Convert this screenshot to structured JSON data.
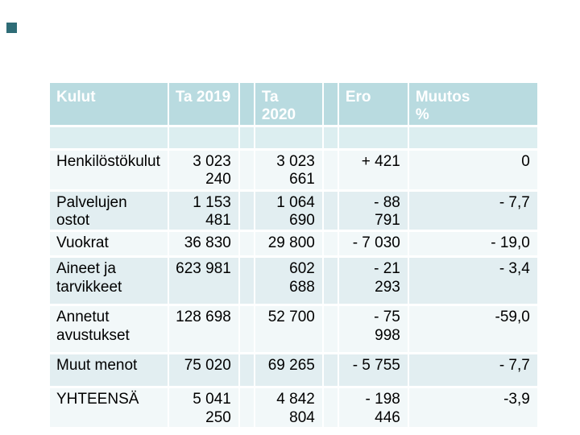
{
  "slide": {
    "background_color": "#ffffff",
    "accent_square_color": "#2e6c76"
  },
  "colors": {
    "header_bg": "#b9dbe0",
    "header_text": "#ffffff",
    "row_tint": "#e2eef1",
    "row_light": "#f2f8f9",
    "body_text": "#000000"
  },
  "table": {
    "header": {
      "kulut": "Kulut",
      "ta2019": "Ta 2019",
      "ta2020": "Ta 2020",
      "ero": "Ero",
      "muutos": "Muutos %"
    },
    "rows": [
      {
        "label": "Henkilöstökulut",
        "ta2019": "3 023 240",
        "ta2020": "3 023 661",
        "ero": "+ 421",
        "muutos": "0"
      },
      {
        "label": "Palvelujen ostot",
        "ta2019": "1 153 481",
        "ta2020": "1 064 690",
        "ero": "- 88 791",
        "muutos": "- 7,7"
      },
      {
        "label": "Vuokrat",
        "ta2019": "36 830",
        "ta2020": "29 800",
        "ero": "- 7 030",
        "muutos": "- 19,0"
      },
      {
        "label": "Aineet ja tarvikkeet",
        "ta2019": "623 981",
        "ta2020": "602 688",
        "ero": "- 21 293",
        "muutos": "- 3,4"
      },
      {
        "label": "Annetut avustukset",
        "ta2019": "128 698",
        "ta2020": "52 700",
        "ero": "- 75 998",
        "muutos": "-59,0"
      },
      {
        "label": "Muut menot",
        "ta2019": "75 020",
        "ta2020": "69 265",
        "ero": "- 5 755",
        "muutos": "- 7,7"
      },
      {
        "label": "YHTEENSÄ",
        "ta2019": "5 041 250",
        "ta2020": "4 842 804",
        "ero": "- 198 446",
        "muutos": "-3,9"
      }
    ]
  }
}
